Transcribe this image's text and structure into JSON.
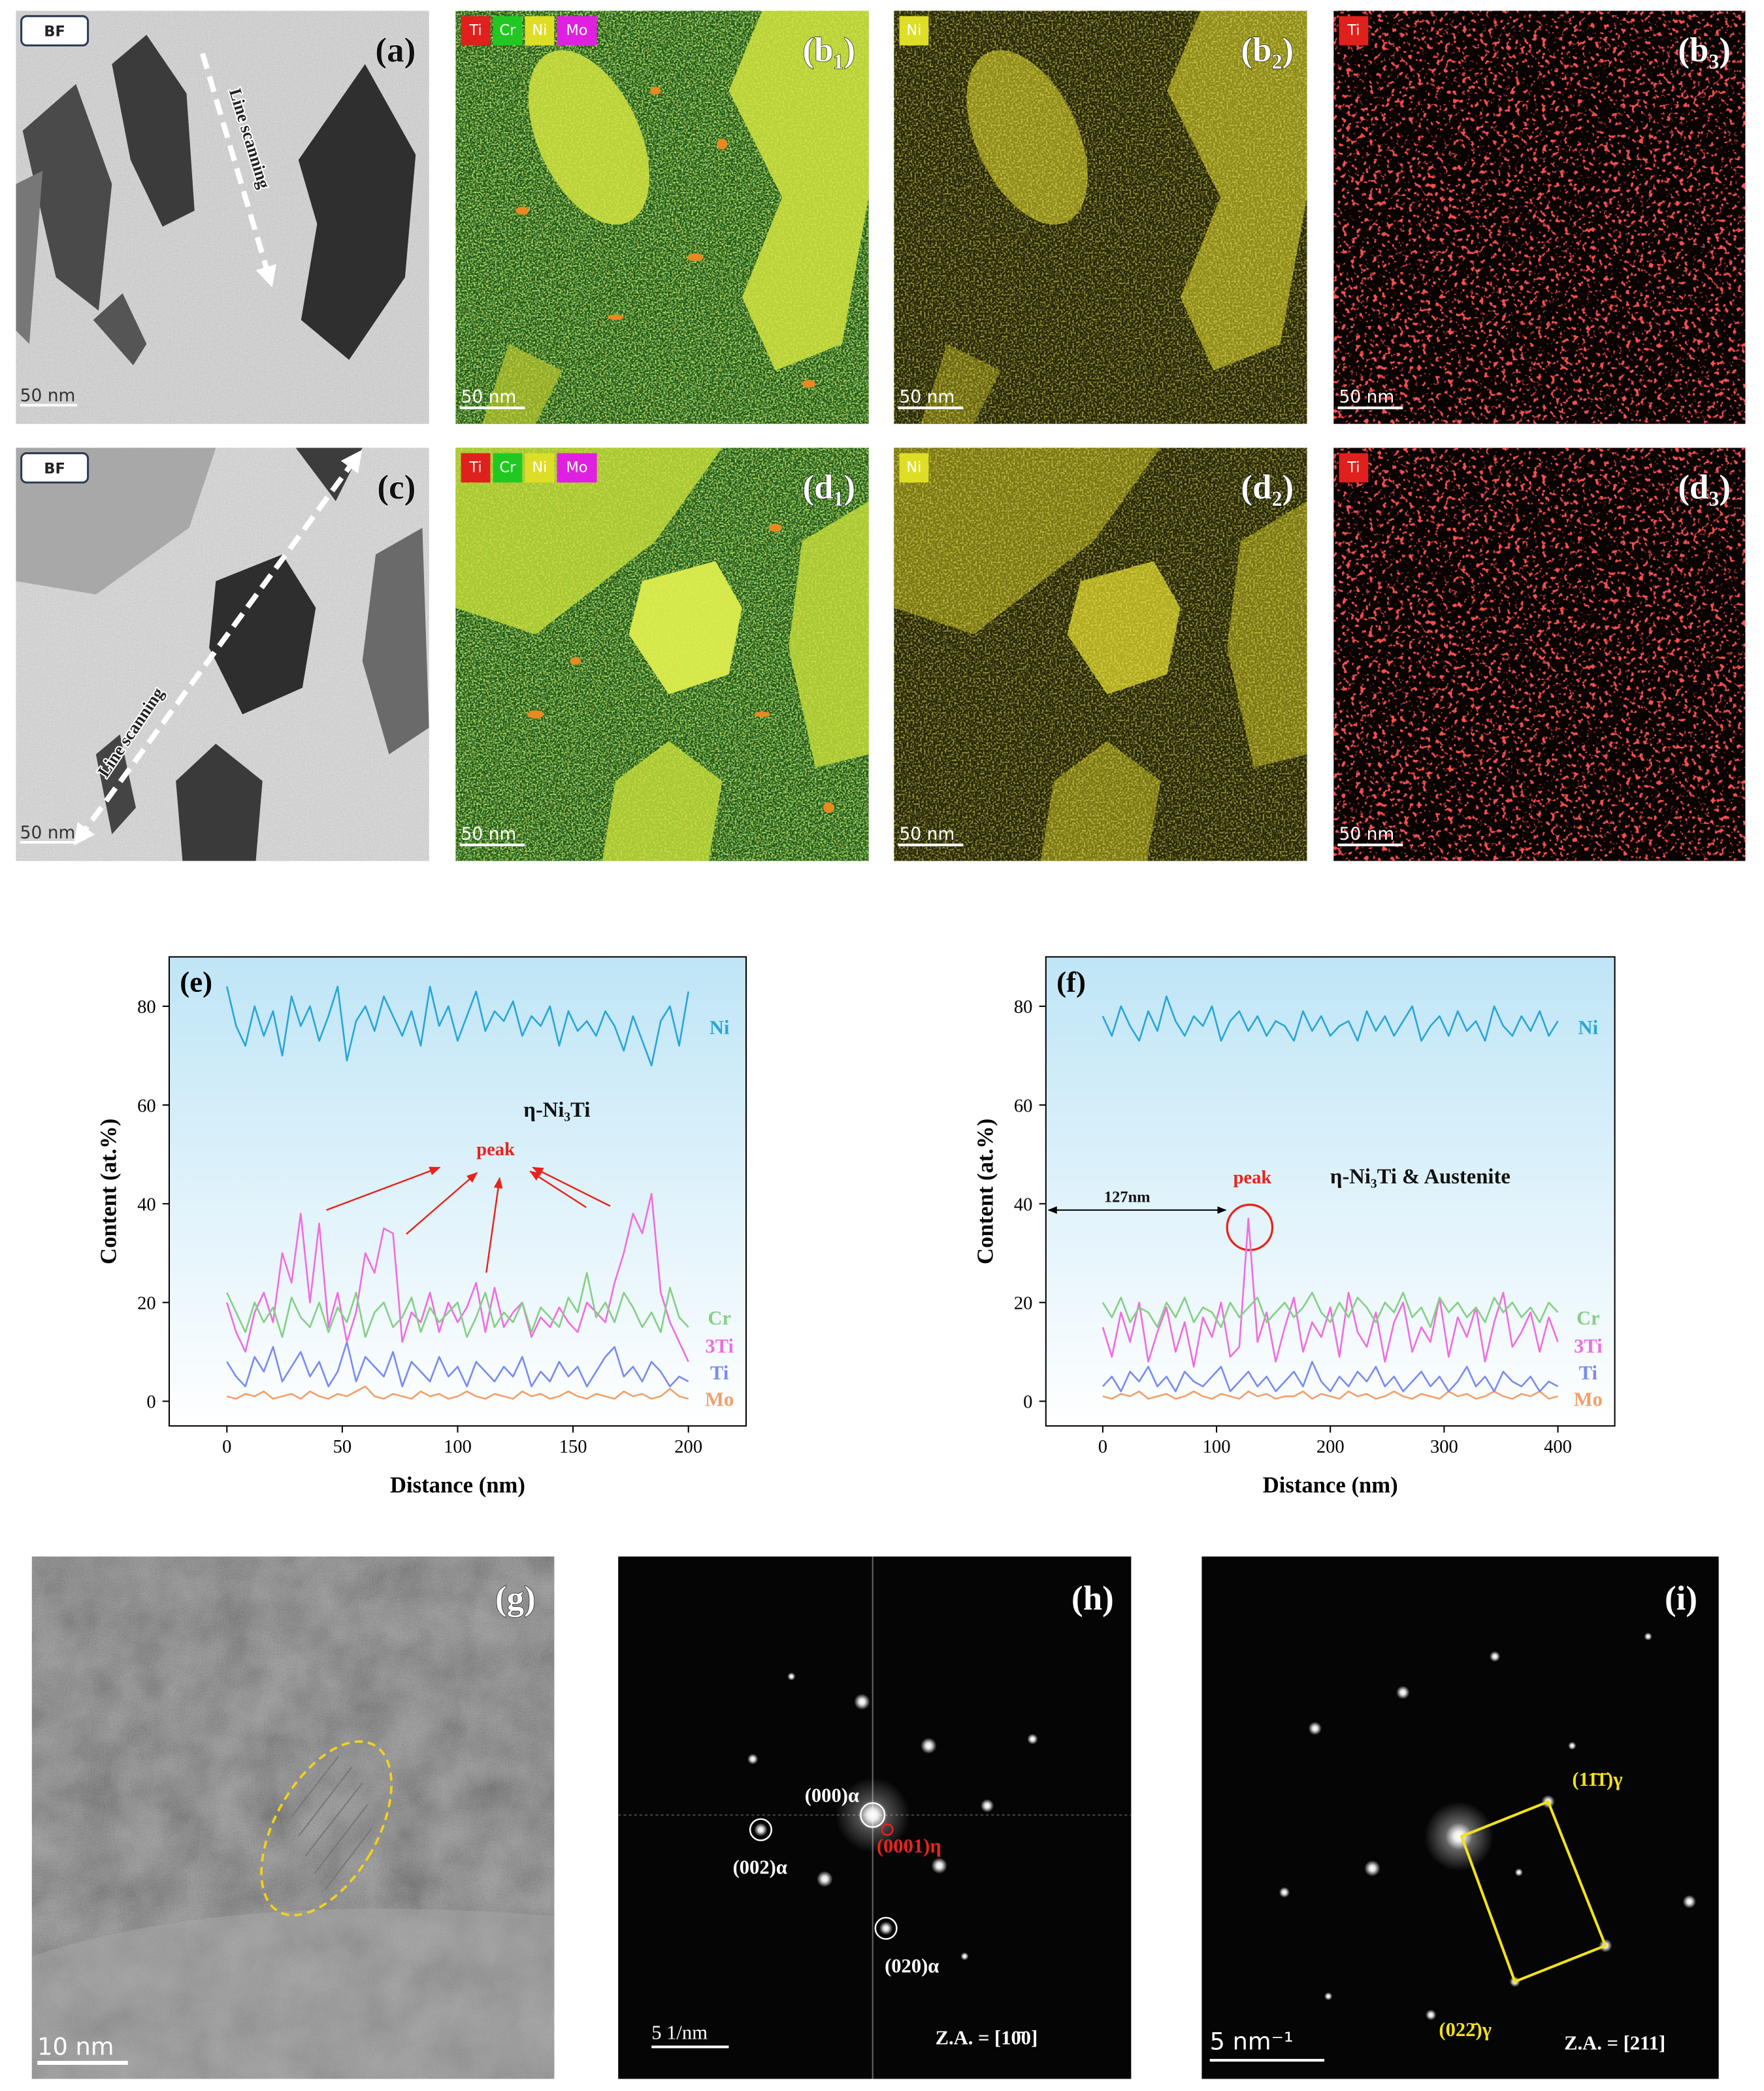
{
  "figure": {
    "panels": {
      "a": {
        "label": "(a)",
        "badge": "BF",
        "annotation": "Line scanning",
        "scale_bar": "50 nm"
      },
      "b1": {
        "label": "(b₁)",
        "tags": [
          "Ti",
          "Cr",
          "Ni",
          "Mo"
        ],
        "scale_bar": "50 nm"
      },
      "b2": {
        "label": "(b₂)",
        "tags": [
          "Ni"
        ],
        "scale_bar": "50 nm"
      },
      "b3": {
        "label": "(b₃)",
        "tags": [
          "Ti"
        ],
        "scale_bar": "50 nm"
      },
      "c": {
        "label": "(c)",
        "badge": "BF",
        "annotation": "Line scanning",
        "scale_bar": "50 nm"
      },
      "d1": {
        "label": "(d₁)",
        "tags": [
          "Ti",
          "Cr",
          "Ni",
          "Mo"
        ],
        "scale_bar": "50 nm"
      },
      "d2": {
        "label": "(d₂)",
        "tags": [
          "Ni"
        ],
        "scale_bar": "50 nm"
      },
      "d3": {
        "label": "(d₃)",
        "tags": [
          "Ti"
        ],
        "scale_bar": "50 nm"
      },
      "g": {
        "label": "(g)",
        "scale_bar": "10 nm"
      },
      "h": {
        "label": "(h)",
        "spots": [
          "(000)α",
          "(002)α",
          "(0001)η",
          "(020)α"
        ],
        "scale_bar": "5 1/nm",
        "zone_axis": "Z.A. = [10̄0]"
      },
      "i": {
        "label": "(i)",
        "spots": [
          "(11̄1̄)γ",
          "(022̄)γ"
        ],
        "scale_bar": "5 nm⁻¹",
        "zone_axis": "Z.A. = [211]"
      }
    }
  },
  "chart_data": [
    {
      "type": "line",
      "panel_label": "(e)",
      "x_label": "Distance (nm)",
      "y_label": "Content (at.%)",
      "annotations": [
        "η-Ni₃Ti",
        "peak"
      ],
      "xlim": [
        -25,
        225
      ],
      "xticks": [
        0,
        50,
        100,
        150,
        200
      ],
      "ylim": [
        -5,
        90
      ],
      "yticks": [
        0,
        20,
        40,
        60,
        80
      ],
      "x": [
        0,
        4,
        8,
        12,
        16,
        20,
        24,
        28,
        32,
        36,
        40,
        44,
        48,
        52,
        56,
        60,
        64,
        68,
        72,
        76,
        80,
        84,
        88,
        92,
        96,
        100,
        104,
        108,
        112,
        116,
        120,
        124,
        128,
        132,
        136,
        140,
        144,
        148,
        152,
        156,
        160,
        164,
        168,
        172,
        176,
        180,
        184,
        188,
        192,
        196,
        200
      ],
      "series": [
        {
          "name": "Ni",
          "color": "#2aa6d6",
          "values": [
            84,
            76,
            72,
            80,
            74,
            79,
            70,
            82,
            76,
            80,
            73,
            78,
            84,
            69,
            77,
            80,
            75,
            82,
            78,
            74,
            79,
            72,
            84,
            76,
            80,
            73,
            78,
            83,
            75,
            79,
            77,
            81,
            74,
            78,
            76,
            80,
            72,
            79,
            75,
            77,
            74,
            79,
            76,
            71,
            78,
            73,
            68,
            77,
            80,
            72,
            83
          ]
        },
        {
          "name": "Cr",
          "color": "#86cf86",
          "values": [
            22,
            18,
            14,
            20,
            16,
            19,
            13,
            21,
            17,
            15,
            20,
            14,
            19,
            16,
            22,
            13,
            18,
            20,
            15,
            17,
            21,
            14,
            19,
            16,
            18,
            20,
            13,
            17,
            22,
            15,
            18,
            16,
            20,
            14,
            19,
            17,
            15,
            21,
            18,
            26,
            17,
            20,
            16,
            22,
            19,
            15,
            18,
            14,
            23,
            17,
            15
          ]
        },
        {
          "name": "3Ti",
          "color": "#f06ee0",
          "values": [
            20,
            14,
            10,
            18,
            22,
            16,
            30,
            24,
            38,
            20,
            36,
            15,
            22,
            12,
            18,
            30,
            26,
            35,
            34,
            12,
            18,
            16,
            22,
            14,
            20,
            16,
            19,
            24,
            14,
            23,
            15,
            18,
            20,
            13,
            17,
            15,
            19,
            16,
            14,
            20,
            18,
            16,
            24,
            30,
            38,
            34,
            42,
            22,
            16,
            12,
            8
          ]
        },
        {
          "name": "Ti",
          "color": "#7a8cf0",
          "values": [
            8,
            5,
            3,
            9,
            6,
            11,
            4,
            7,
            10,
            5,
            8,
            3,
            6,
            12,
            4,
            9,
            7,
            5,
            10,
            3,
            8,
            6,
            4,
            9,
            5,
            7,
            3,
            8,
            6,
            4,
            7,
            5,
            9,
            3,
            6,
            4,
            8,
            5,
            7,
            3,
            6,
            9,
            11,
            5,
            7,
            4,
            8,
            6,
            3,
            5,
            4
          ]
        },
        {
          "name": "Mo",
          "color": "#f0a06c",
          "values": [
            1,
            0.5,
            1.5,
            1,
            2,
            0.5,
            1,
            1.5,
            0.5,
            2,
            1,
            0.5,
            1.5,
            1,
            2,
            3,
            1,
            0.5,
            1.5,
            1,
            0.5,
            2,
            1,
            1.5,
            0.5,
            1,
            2,
            1,
            0.5,
            1.5,
            1,
            0.5,
            2,
            1,
            1.5,
            0.5,
            1,
            2,
            1,
            0.5,
            1.5,
            1,
            0.5,
            2,
            1,
            1.5,
            0.5,
            1,
            2.5,
            1,
            0.5
          ]
        }
      ]
    },
    {
      "type": "line",
      "panel_label": "(f)",
      "x_label": "Distance (nm)",
      "y_label": "Content (at.%)",
      "annotations": [
        "η-Ni₃Ti & Austenite",
        "peak",
        "127nm"
      ],
      "xlim": [
        -50,
        450
      ],
      "xticks": [
        0,
        100,
        200,
        300,
        400
      ],
      "ylim": [
        -5,
        90
      ],
      "yticks": [
        0,
        20,
        40,
        60,
        80
      ],
      "x": [
        0,
        8,
        16,
        24,
        32,
        40,
        48,
        56,
        64,
        72,
        80,
        88,
        96,
        104,
        112,
        120,
        128,
        136,
        144,
        152,
        160,
        168,
        176,
        184,
        192,
        200,
        208,
        216,
        224,
        232,
        240,
        248,
        256,
        264,
        272,
        280,
        288,
        296,
        304,
        312,
        320,
        328,
        336,
        344,
        352,
        360,
        368,
        376,
        384,
        392,
        400
      ],
      "series": [
        {
          "name": "Ni",
          "color": "#2aa6d6",
          "values": [
            78,
            74,
            80,
            76,
            73,
            79,
            75,
            82,
            77,
            74,
            78,
            76,
            80,
            73,
            77,
            79,
            75,
            78,
            74,
            77,
            76,
            73,
            79,
            75,
            78,
            74,
            76,
            77,
            73,
            79,
            75,
            78,
            74,
            77,
            80,
            73,
            76,
            78,
            74,
            79,
            75,
            77,
            73,
            80,
            76,
            74,
            78,
            75,
            79,
            74,
            77
          ]
        },
        {
          "name": "Cr",
          "color": "#86cf86",
          "values": [
            20,
            17,
            21,
            16,
            19,
            18,
            15,
            20,
            17,
            21,
            16,
            19,
            18,
            15,
            20,
            17,
            19,
            21,
            16,
            18,
            20,
            17,
            19,
            22,
            18,
            16,
            20,
            17,
            21,
            19,
            16,
            20,
            18,
            22,
            17,
            19,
            15,
            21,
            18,
            20,
            17,
            19,
            16,
            21,
            18,
            20,
            17,
            19,
            16,
            20,
            18
          ]
        },
        {
          "name": "3Ti",
          "color": "#f06ee0",
          "values": [
            15,
            9,
            18,
            12,
            20,
            8,
            14,
            19,
            10,
            16,
            7,
            17,
            13,
            20,
            9,
            11,
            37,
            12,
            18,
            8,
            15,
            21,
            10,
            16,
            13,
            19,
            9,
            22,
            14,
            11,
            18,
            8,
            16,
            20,
            10,
            15,
            12,
            21,
            9,
            17,
            13,
            19,
            8,
            16,
            22,
            11,
            14,
            18,
            10,
            17,
            12
          ]
        },
        {
          "name": "Ti",
          "color": "#7a8cf0",
          "values": [
            3,
            5,
            2,
            6,
            4,
            7,
            3,
            5,
            2,
            6,
            4,
            3,
            5,
            7,
            2,
            4,
            6,
            3,
            5,
            2,
            4,
            6,
            3,
            8,
            4,
            2,
            5,
            3,
            6,
            4,
            7,
            3,
            5,
            2,
            4,
            6,
            3,
            5,
            2,
            4,
            7,
            3,
            5,
            2,
            6,
            4,
            3,
            5,
            2,
            4,
            3
          ]
        },
        {
          "name": "Mo",
          "color": "#f0a06c",
          "values": [
            1,
            0.5,
            1.5,
            1,
            2,
            0.5,
            1,
            1.5,
            0.5,
            1,
            2,
            1,
            0.5,
            1.5,
            1,
            0.5,
            2,
            1,
            1.5,
            0.5,
            1,
            1,
            2,
            0.5,
            1.5,
            1,
            0.5,
            2,
            1,
            1.5,
            0.5,
            1,
            2,
            1,
            0.5,
            1.5,
            1,
            0.5,
            2,
            1,
            1.5,
            0.5,
            1,
            2,
            1,
            0.5,
            1.5,
            1,
            2,
            0.5,
            1
          ]
        }
      ]
    }
  ]
}
